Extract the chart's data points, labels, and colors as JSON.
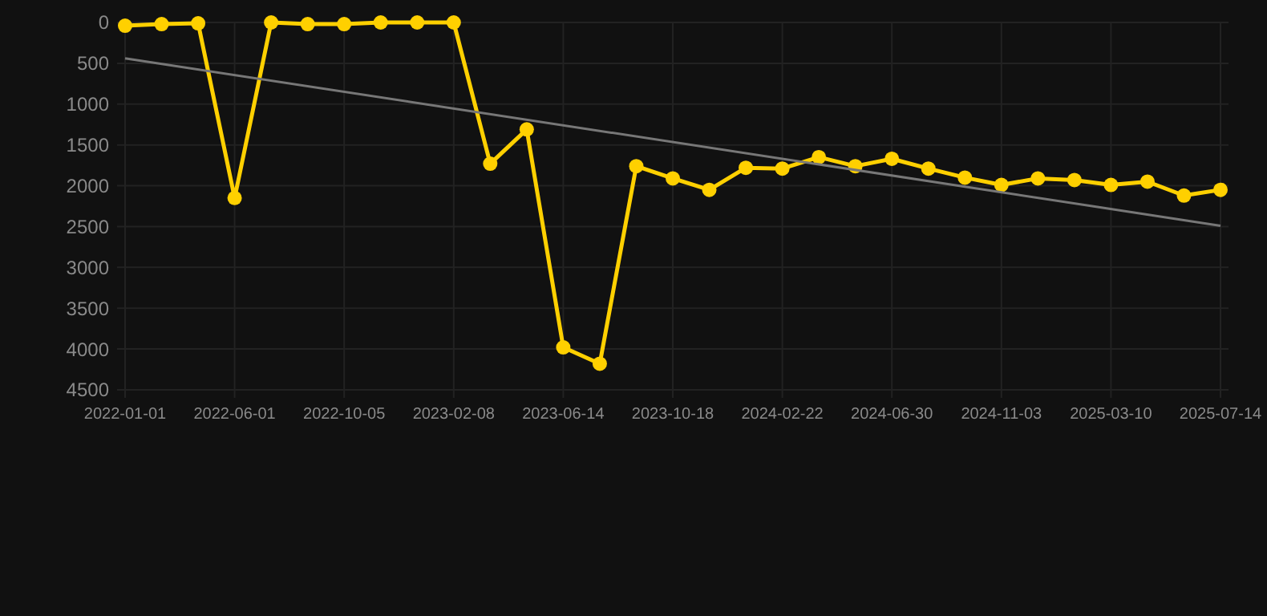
{
  "chart_data": {
    "type": "line",
    "categories": [
      "2022-01-01",
      null,
      null,
      "2022-06-01",
      null,
      null,
      "2022-10-05",
      null,
      null,
      "2023-02-08",
      null,
      null,
      "2023-06-14",
      null,
      null,
      "2023-10-18",
      null,
      null,
      "2024-02-22",
      null,
      null,
      "2024-06-30",
      null,
      null,
      "2024-11-03",
      null,
      null,
      "2025-03-10",
      null,
      null,
      "2025-07-14"
    ],
    "series": [
      {
        "color": "#ffd000",
        "marker": "circle",
        "values": [
          40,
          20,
          10,
          2150,
          0,
          20,
          20,
          0,
          0,
          0,
          1730,
          1310,
          3980,
          4180,
          1760,
          1910,
          2050,
          1780,
          1790,
          1650,
          1760,
          1670,
          1790,
          1900,
          1990,
          1910,
          1930,
          1990,
          1950,
          2120,
          2050
        ]
      },
      {
        "type": "line",
        "color": "#777777",
        "marker": "none",
        "values": [
          440,
          null,
          null,
          null,
          null,
          null,
          null,
          null,
          null,
          null,
          null,
          null,
          null,
          null,
          null,
          null,
          null,
          null,
          null,
          null,
          null,
          null,
          null,
          null,
          null,
          null,
          null,
          null,
          null,
          null,
          2490
        ]
      }
    ],
    "ylim": [
      4500,
      0
    ],
    "yticks": [
      0,
      500,
      1000,
      1500,
      2000,
      2500,
      3000,
      3500,
      4000,
      4500
    ],
    "grid": true
  }
}
